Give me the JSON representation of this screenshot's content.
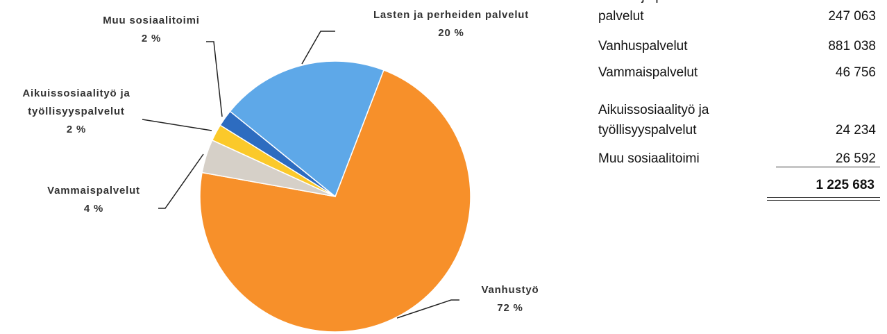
{
  "chart_data": {
    "type": "pie",
    "categories": [
      "Vanhustyö",
      "Vammaispalvelut",
      "Aikuissosiaalityö ja työllisyyspalvelut",
      "Muu sosiaalitoimi",
      "Lasten ja perheiden palvelut"
    ],
    "values": [
      72,
      4,
      2,
      2,
      20
    ],
    "value_labels": [
      "72 %",
      "4 %",
      "2 %",
      "2 %",
      "20 %"
    ],
    "colors": [
      "#f7902a",
      "#d6d0c8",
      "#fbc92a",
      "#2d6cc0",
      "#5ea8e8"
    ]
  },
  "table": {
    "rows": [
      [
        "Lasten ja perheiden palvelut",
        "247 063"
      ],
      [
        "Vanhuspalvelut",
        "881 038"
      ],
      [
        "Vammaispalvelut",
        "46 756"
      ],
      [
        "Aikuissosiaalityö ja työllisyyspalvelut",
        "24 234"
      ],
      [
        "Muu sosiaalitoimi",
        "26 592"
      ]
    ],
    "total": "1 225 683"
  }
}
